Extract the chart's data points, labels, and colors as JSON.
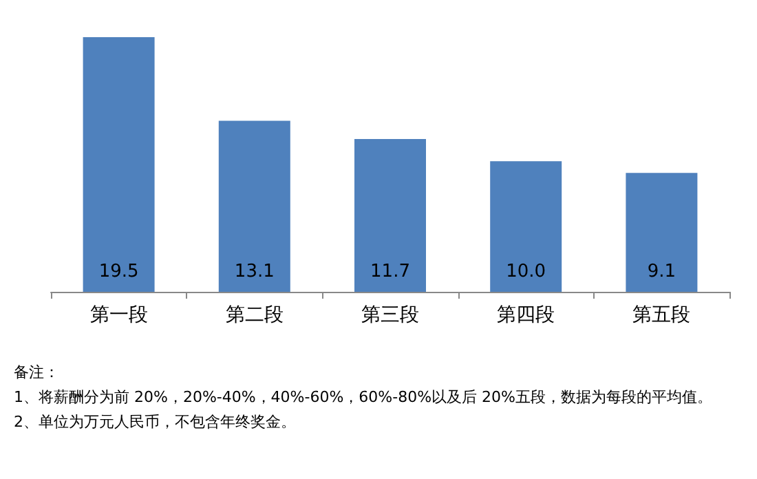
{
  "chart_data": {
    "type": "bar",
    "categories": [
      "第一段",
      "第二段",
      "第三段",
      "第四段",
      "第五段"
    ],
    "values": [
      19.5,
      13.1,
      11.7,
      10.0,
      9.1
    ],
    "value_labels": [
      "19.5",
      "13.1",
      "11.7",
      "10.0",
      "9.1"
    ],
    "color": "#4f81bd",
    "grid": false,
    "annotations": [
      "备注：",
      "1、将薪酬分为前 20%，20%-40%，40%-60%，60%-80%以及后 20%五段，数据为每段的平均值。",
      "2、单位为万元人民币，不包含年终奖金。"
    ]
  }
}
